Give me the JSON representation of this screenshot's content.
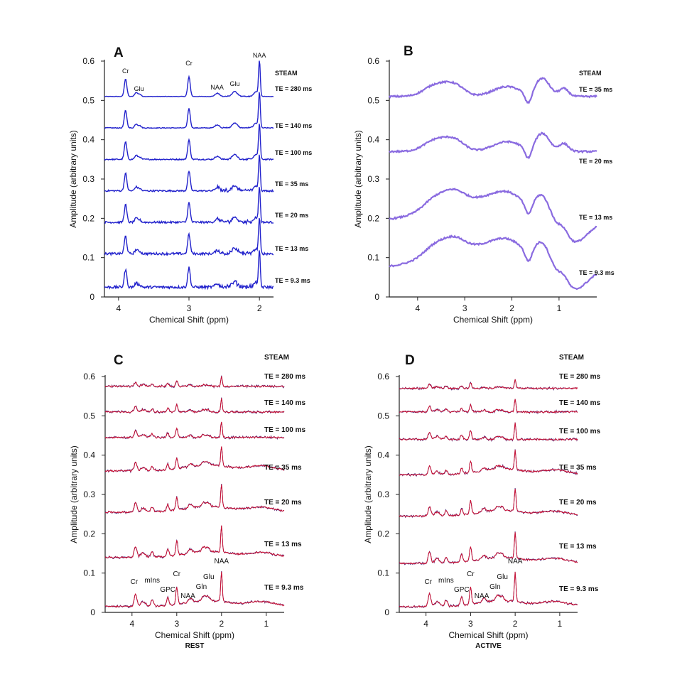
{
  "chart_data": [
    {
      "type": "line",
      "panel": "A",
      "sequence": "STEAM",
      "xlabel": "Chemical Shift (ppm)",
      "ylabel": "Amplitude (arbitrary units)",
      "xlim": [
        4.2,
        1.8
      ],
      "ylim": [
        0,
        0.6
      ],
      "xticks": [
        4,
        3,
        2
      ],
      "yticks": [
        "0",
        "0.1",
        "0.2",
        "0.3",
        "0.4",
        "0.5",
        "0.6"
      ],
      "color": "#2222cc",
      "series": [
        {
          "name": "TE = 280 ms",
          "baseline": 0.51
        },
        {
          "name": "TE = 140 ms",
          "baseline": 0.43
        },
        {
          "name": "TE = 100 ms",
          "baseline": 0.35
        },
        {
          "name": "TE = 35 ms",
          "baseline": 0.27
        },
        {
          "name": "TE = 20 ms",
          "baseline": 0.19
        },
        {
          "name": "TE = 13 ms",
          "baseline": 0.11
        },
        {
          "name": "TE = 9.3 ms",
          "baseline": 0.025
        }
      ],
      "annotations": [
        {
          "text": "Cr",
          "ppm": 3.9
        },
        {
          "text": "Glu",
          "ppm": 3.75
        },
        {
          "text": "Cr",
          "ppm": 3.0
        },
        {
          "text": "NAA",
          "ppm": 2.6
        },
        {
          "text": "Glu",
          "ppm": 2.35
        },
        {
          "text": "NAA",
          "ppm": 2.0
        }
      ]
    },
    {
      "type": "line",
      "panel": "B",
      "sequence": "STEAM",
      "xlabel": "Chemical Shift (ppm)",
      "ylabel": "Amplitude (arbitrary units)",
      "xlim": [
        4.6,
        0.2
      ],
      "ylim": [
        0,
        0.6
      ],
      "xticks": [
        4,
        3,
        2,
        1
      ],
      "yticks": [
        "0",
        "0.1",
        "0.2",
        "0.3",
        "0.4",
        "0.5",
        "0.6"
      ],
      "color": "#8a6be0",
      "series": [
        {
          "name": "TE = 35 ms",
          "baseline": 0.51
        },
        {
          "name": "TE = 20 ms",
          "baseline": 0.37
        },
        {
          "name": "TE = 13 ms",
          "baseline": 0.19
        },
        {
          "name": "TE = 9.3 ms",
          "baseline": 0.07
        }
      ]
    },
    {
      "type": "line",
      "panel": "C",
      "sequence": "STEAM",
      "condition": "REST",
      "xlabel": "Chemical Shift (ppm)",
      "ylabel": "Amplitude (arbitrary units)",
      "xlim": [
        4.6,
        0.6
      ],
      "ylim": [
        0,
        0.6
      ],
      "xticks": [
        4,
        3,
        2,
        1
      ],
      "yticks": [
        "0",
        "0.1",
        "0.2",
        "0.3",
        "0.4",
        "0.5",
        "0.6"
      ],
      "color_measured": "#cc1133",
      "color_fit": "#442277",
      "series": [
        {
          "name": "TE = 280 ms",
          "baseline": 0.575
        },
        {
          "name": "TE = 140 ms",
          "baseline": 0.51
        },
        {
          "name": "TE = 100 ms",
          "baseline": 0.445
        },
        {
          "name": "TE = 35 ms",
          "baseline": 0.36
        },
        {
          "name": "TE = 20 ms",
          "baseline": 0.255
        },
        {
          "name": "TE  = 13 ms",
          "baseline": 0.14
        },
        {
          "name": "TE = 9.3 ms",
          "baseline": 0.015
        }
      ],
      "annotations": [
        {
          "text": "Cr",
          "ppm": 3.95
        },
        {
          "text": "mIns",
          "ppm": 3.55
        },
        {
          "text": "GPC",
          "ppm": 3.2
        },
        {
          "text": "Cr",
          "ppm": 3.0
        },
        {
          "text": "NAA",
          "ppm": 2.75
        },
        {
          "text": "Gln",
          "ppm": 2.45
        },
        {
          "text": "Glu",
          "ppm": 2.35
        },
        {
          "text": "NAA",
          "ppm": 2.0
        }
      ]
    },
    {
      "type": "line",
      "panel": "D",
      "sequence": "STEAM",
      "condition": "ACTIVE",
      "xlabel": "Chemical Shift (ppm)",
      "ylabel": "Amplitude (arbitrary units)",
      "xlim": [
        4.6,
        0.6
      ],
      "ylim": [
        0,
        0.6
      ],
      "xticks": [
        4,
        3,
        2,
        1
      ],
      "yticks": [
        "0",
        "0.1",
        "0.2",
        "0.3",
        "0.4",
        "0.5",
        "0.6"
      ],
      "color_measured": "#cc1133",
      "color_fit": "#442277",
      "series": [
        {
          "name": "TE = 280 ms",
          "baseline": 0.57
        },
        {
          "name": "TE = 140 ms",
          "baseline": 0.51
        },
        {
          "name": "TE = 100 ms",
          "baseline": 0.44
        },
        {
          "name": "TE = 35 ms",
          "baseline": 0.35
        },
        {
          "name": "TE = 20 ms",
          "baseline": 0.245
        },
        {
          "name": "TE  = 13 ms",
          "baseline": 0.125
        },
        {
          "name": "TE = 9.3 ms",
          "baseline": 0.015
        }
      ],
      "annotations": [
        {
          "text": "Cr",
          "ppm": 3.95
        },
        {
          "text": "mIns",
          "ppm": 3.55
        },
        {
          "text": "GPC",
          "ppm": 3.2
        },
        {
          "text": "Cr",
          "ppm": 3.0
        },
        {
          "text": "NAA",
          "ppm": 2.75
        },
        {
          "text": "Gln",
          "ppm": 2.45
        },
        {
          "text": "Glu",
          "ppm": 2.35
        },
        {
          "text": "NAA",
          "ppm": 2.0
        }
      ]
    }
  ]
}
